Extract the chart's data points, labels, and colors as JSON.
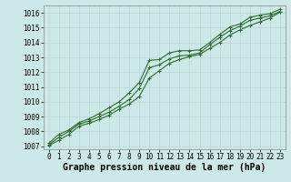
{
  "xlabel": "Graphe pression niveau de la mer (hPa)",
  "xlim": [
    -0.5,
    23.5
  ],
  "ylim": [
    1006.8,
    1016.5
  ],
  "yticks": [
    1007,
    1008,
    1009,
    1010,
    1011,
    1012,
    1013,
    1014,
    1015,
    1016
  ],
  "xticks": [
    0,
    1,
    2,
    3,
    4,
    5,
    6,
    7,
    8,
    9,
    10,
    11,
    12,
    13,
    14,
    15,
    16,
    17,
    18,
    19,
    20,
    21,
    22,
    23
  ],
  "bg_color": "#cce8e8",
  "line_color": "#2d6e2d",
  "hours": [
    0,
    1,
    2,
    3,
    4,
    5,
    6,
    7,
    8,
    9,
    10,
    11,
    12,
    13,
    14,
    15,
    16,
    17,
    18,
    19,
    20,
    21,
    22,
    23
  ],
  "line1": [
    1007.2,
    1007.8,
    1008.1,
    1008.6,
    1008.85,
    1009.2,
    1009.6,
    1010.0,
    1010.6,
    1011.3,
    1012.8,
    1012.85,
    1013.3,
    1013.45,
    1013.45,
    1013.5,
    1014.0,
    1014.55,
    1015.05,
    1015.25,
    1015.7,
    1015.85,
    1015.95,
    1016.25
  ],
  "line2": [
    1007.1,
    1007.6,
    1008.0,
    1008.5,
    1008.7,
    1009.0,
    1009.3,
    1009.7,
    1010.15,
    1010.9,
    1012.3,
    1012.5,
    1012.9,
    1013.1,
    1013.15,
    1013.3,
    1013.85,
    1014.35,
    1014.8,
    1015.1,
    1015.5,
    1015.65,
    1015.8,
    1016.1
  ],
  "line3": [
    1007.05,
    1007.4,
    1007.8,
    1008.35,
    1008.55,
    1008.8,
    1009.1,
    1009.5,
    1009.85,
    1010.35,
    1011.6,
    1012.1,
    1012.6,
    1012.85,
    1013.05,
    1013.2,
    1013.6,
    1014.0,
    1014.5,
    1014.85,
    1015.15,
    1015.4,
    1015.65,
    1016.05
  ],
  "markersize": 3,
  "linewidth": 0.8,
  "tick_fontsize": 5.5,
  "xlabel_fontsize": 7.0
}
